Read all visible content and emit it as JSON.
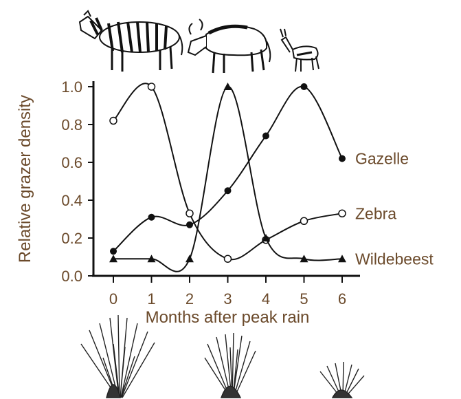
{
  "chart_data": {
    "type": "line",
    "xlabel": "Months after peak rain",
    "ylabel": "Relative grazer density",
    "x": [
      0,
      1,
      2,
      3,
      4,
      5,
      6
    ],
    "xlim": [
      0,
      6
    ],
    "ylim": [
      0,
      1.0
    ],
    "x_ticks": [
      "0",
      "1",
      "2",
      "3",
      "4",
      "5",
      "6"
    ],
    "y_ticks": [
      "0.0",
      "0.2",
      "0.4",
      "0.6",
      "0.8",
      "1.0"
    ],
    "grid": false,
    "legend": "inline labels at right end of each line",
    "series": [
      {
        "name": "Gazelle",
        "marker": "filled-circle",
        "values": [
          0.13,
          0.31,
          0.27,
          0.45,
          0.74,
          1.0,
          0.62
        ]
      },
      {
        "name": "Zebra",
        "marker": "open-circle",
        "values": [
          0.82,
          1.0,
          0.33,
          0.09,
          0.19,
          0.29,
          0.33
        ]
      },
      {
        "name": "Wildebeest",
        "marker": "filled-triangle",
        "values": [
          0.09,
          0.09,
          0.09,
          1.0,
          0.2,
          0.09,
          0.09
        ]
      }
    ]
  },
  "illustrations": {
    "animals": [
      "zebra-illustration",
      "wildebeest-illustration",
      "gazelle-illustration"
    ],
    "grasses": [
      "tall-grass-illustration",
      "medium-grass-illustration",
      "short-grass-illustration"
    ]
  },
  "colors": {
    "text": "#6b4a2b",
    "lines": "#111111",
    "background": "#ffffff"
  }
}
